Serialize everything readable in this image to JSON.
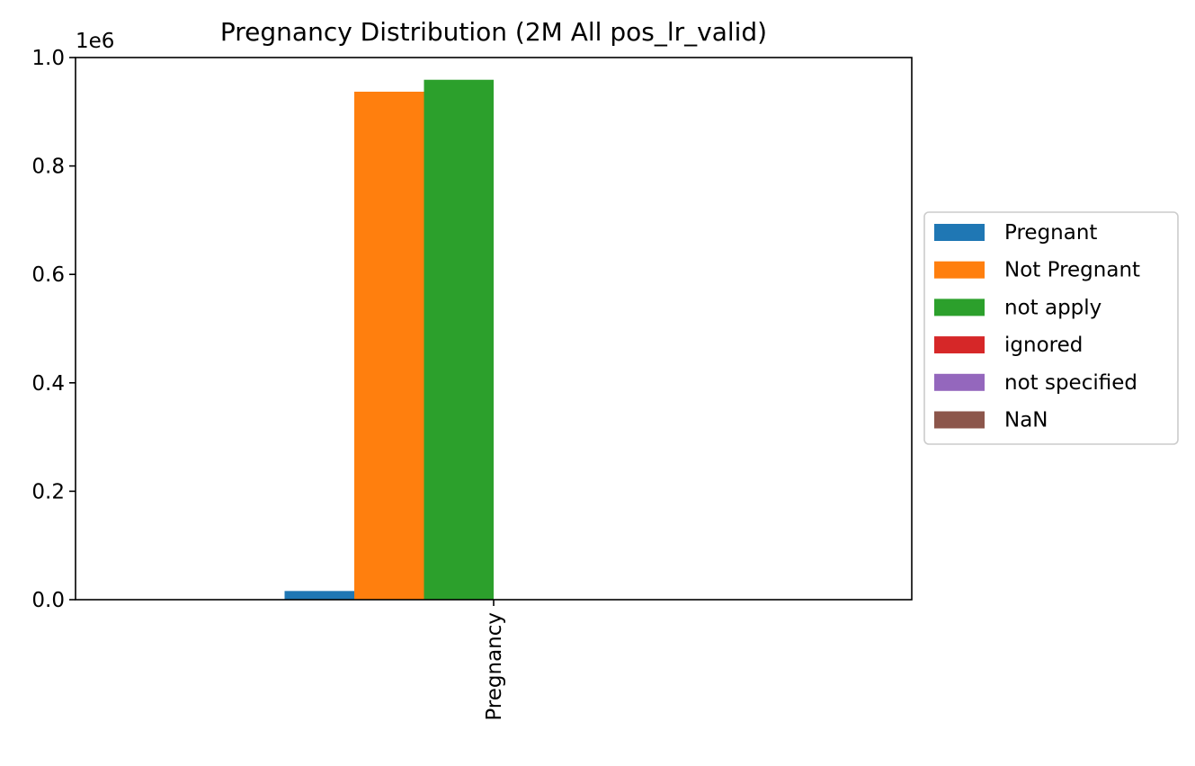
{
  "chart_data": {
    "type": "bar",
    "title": "Pregnancy Distribution (2M All pos_lr_valid)",
    "xlabel": "",
    "ylabel": "",
    "categories": [
      "Pregnancy"
    ],
    "y_offset_label": "1e6",
    "ylim": [
      0,
      1000000
    ],
    "yticks": [
      0,
      200000,
      400000,
      600000,
      800000,
      1000000
    ],
    "ytick_labels": [
      "0.0",
      "0.2",
      "0.4",
      "0.6",
      "0.8",
      "1.0"
    ],
    "grid": false,
    "legend_position": "right",
    "series": [
      {
        "name": "Pregnant",
        "color": "#1f77b4",
        "values": [
          16000
        ]
      },
      {
        "name": "Not Pregnant",
        "color": "#ff7f0e",
        "values": [
          937000
        ]
      },
      {
        "name": "not apply",
        "color": "#2ca02c",
        "values": [
          959000
        ]
      },
      {
        "name": "ignored",
        "color": "#d62728",
        "values": [
          0
        ]
      },
      {
        "name": "not specified",
        "color": "#9467bd",
        "values": [
          0
        ]
      },
      {
        "name": "NaN",
        "color": "#8c564b",
        "values": [
          0
        ]
      }
    ]
  }
}
